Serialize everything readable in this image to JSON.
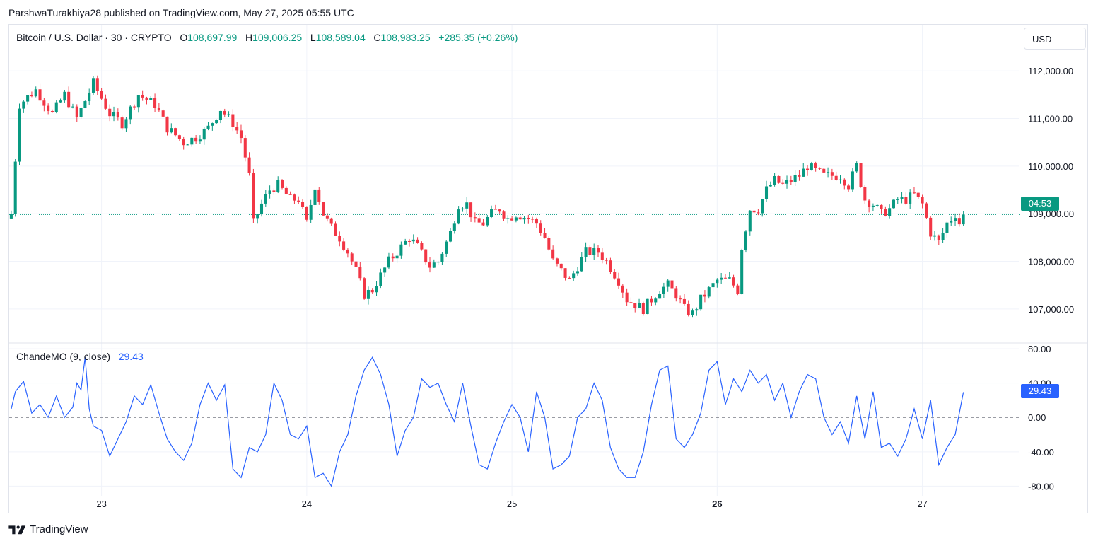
{
  "header": {
    "published_by": "ParshwaTurakhiya28 published on TradingView.com, May 27, 2025 05:55 UTC"
  },
  "legend": {
    "symbol": "Bitcoin / U.S. Dollar · 30 · CRYPTO",
    "o_label": "O",
    "o_value": "108,697.99",
    "h_label": "H",
    "h_value": "109,006.25",
    "l_label": "L",
    "l_value": "108,589.04",
    "c_label": "C",
    "c_value": "108,983.25",
    "change": "+285.35 (+0.26%)"
  },
  "toolbar": {
    "currency_label": "USD"
  },
  "price_scale": {
    "labels": [
      "112,000.00",
      "111,000.00",
      "110,000.00",
      "109,000.00",
      "108,000.00",
      "107,000.00"
    ],
    "countdown_label": "04:53"
  },
  "oscillator": {
    "name": "ChandeMO (9, close)",
    "value": "29.43",
    "scale_labels": [
      "80.00",
      "40.00",
      "0.00",
      "-40.00",
      "-80.00"
    ]
  },
  "time_axis": {
    "labels": [
      "23",
      "24",
      "25",
      "26",
      "27"
    ]
  },
  "brand": {
    "name": "TradingView"
  },
  "colors": {
    "up": "#089981",
    "down": "#f23645",
    "osc_line": "#2962ff",
    "grid": "#f0f3fa"
  },
  "chart_data": {
    "type": "candlestick",
    "interval": "30",
    "price_range": [
      106300,
      112300
    ],
    "oscillator_range": [
      -92,
      85
    ],
    "anchors": [
      [
        0,
        109000
      ],
      [
        2,
        111300
      ],
      [
        6,
        111600
      ],
      [
        10,
        111100
      ],
      [
        13,
        111500
      ],
      [
        16,
        111000
      ],
      [
        20,
        111750
      ],
      [
        24,
        111100
      ],
      [
        27,
        110900
      ],
      [
        31,
        111500
      ],
      [
        35,
        111300
      ],
      [
        38,
        110800
      ],
      [
        42,
        110500
      ],
      [
        45,
        110600
      ],
      [
        48,
        110800
      ],
      [
        51,
        111200
      ],
      [
        54,
        110900
      ],
      [
        56,
        110600
      ],
      [
        58,
        109800
      ],
      [
        59,
        108800
      ],
      [
        61,
        109200
      ],
      [
        63,
        109500
      ],
      [
        65,
        109600
      ],
      [
        68,
        109300
      ],
      [
        70,
        109300
      ],
      [
        72,
        108800
      ],
      [
        74,
        109600
      ],
      [
        76,
        109000
      ],
      [
        78,
        108700
      ],
      [
        80,
        108500
      ],
      [
        82,
        108200
      ],
      [
        84,
        107800
      ],
      [
        86,
        107300
      ],
      [
        88,
        107400
      ],
      [
        90,
        107700
      ],
      [
        92,
        108000
      ],
      [
        95,
        108300
      ],
      [
        97,
        108500
      ],
      [
        99,
        108300
      ],
      [
        102,
        107900
      ],
      [
        104,
        108000
      ],
      [
        106,
        108400
      ],
      [
        107,
        108600
      ],
      [
        109,
        109200
      ],
      [
        111,
        109200
      ],
      [
        113,
        108800
      ],
      [
        115,
        108800
      ],
      [
        117,
        109000
      ],
      [
        119,
        109100
      ],
      [
        121,
        108900
      ],
      [
        123,
        109000
      ],
      [
        126,
        108900
      ],
      [
        128,
        108800
      ],
      [
        130,
        108500
      ],
      [
        132,
        108000
      ],
      [
        134,
        107800
      ],
      [
        136,
        107600
      ],
      [
        138,
        107900
      ],
      [
        140,
        108200
      ],
      [
        143,
        108200
      ],
      [
        145,
        108000
      ],
      [
        148,
        107600
      ],
      [
        150,
        107200
      ],
      [
        152,
        107100
      ],
      [
        154,
        107000
      ],
      [
        156,
        107200
      ],
      [
        158,
        107400
      ],
      [
        160,
        107500
      ],
      [
        162,
        107300
      ],
      [
        164,
        107000
      ],
      [
        166,
        106900
      ],
      [
        168,
        107200
      ],
      [
        170,
        107400
      ],
      [
        172,
        107600
      ],
      [
        175,
        107600
      ],
      [
        177,
        107400
      ],
      [
        178,
        108300
      ],
      [
        180,
        109100
      ],
      [
        182,
        109100
      ],
      [
        184,
        109500
      ],
      [
        186,
        109700
      ],
      [
        188,
        109600
      ],
      [
        190,
        109700
      ],
      [
        192,
        109800
      ],
      [
        194,
        110000
      ],
      [
        196,
        109900
      ],
      [
        198,
        109800
      ],
      [
        200,
        109800
      ],
      [
        202,
        109800
      ],
      [
        204,
        109600
      ],
      [
        206,
        110000
      ],
      [
        208,
        109300
      ],
      [
        210,
        109200
      ],
      [
        212,
        109000
      ],
      [
        214,
        109100
      ],
      [
        216,
        109300
      ],
      [
        218,
        109300
      ],
      [
        220,
        109400
      ],
      [
        222,
        109200
      ],
      [
        224,
        108600
      ],
      [
        226,
        108400
      ],
      [
        228,
        108800
      ],
      [
        230,
        109000
      ],
      [
        231,
        108800
      ],
      [
        232,
        108983
      ]
    ],
    "last_close": 108983.25,
    "oscillator_points": [
      [
        0,
        10
      ],
      [
        1,
        30
      ],
      [
        3,
        42
      ],
      [
        5,
        5
      ],
      [
        7,
        15
      ],
      [
        9,
        0
      ],
      [
        11,
        25
      ],
      [
        13,
        0
      ],
      [
        15,
        12
      ],
      [
        16,
        40
      ],
      [
        17,
        32
      ],
      [
        18,
        70
      ],
      [
        19,
        10
      ],
      [
        20,
        -10
      ],
      [
        22,
        -15
      ],
      [
        24,
        -45
      ],
      [
        26,
        -25
      ],
      [
        28,
        -5
      ],
      [
        30,
        25
      ],
      [
        32,
        15
      ],
      [
        34,
        38
      ],
      [
        36,
        5
      ],
      [
        38,
        -25
      ],
      [
        40,
        -40
      ],
      [
        42,
        -50
      ],
      [
        44,
        -30
      ],
      [
        46,
        15
      ],
      [
        48,
        40
      ],
      [
        50,
        20
      ],
      [
        52,
        38
      ],
      [
        54,
        -60
      ],
      [
        56,
        -70
      ],
      [
        58,
        -35
      ],
      [
        60,
        -40
      ],
      [
        62,
        -20
      ],
      [
        64,
        40
      ],
      [
        66,
        20
      ],
      [
        68,
        -20
      ],
      [
        70,
        -25
      ],
      [
        72,
        -10
      ],
      [
        74,
        -70
      ],
      [
        76,
        -65
      ],
      [
        78,
        -80
      ],
      [
        80,
        -40
      ],
      [
        82,
        -20
      ],
      [
        84,
        25
      ],
      [
        86,
        55
      ],
      [
        88,
        70
      ],
      [
        90,
        50
      ],
      [
        92,
        15
      ],
      [
        94,
        -45
      ],
      [
        96,
        -15
      ],
      [
        98,
        0
      ],
      [
        100,
        45
      ],
      [
        102,
        35
      ],
      [
        104,
        40
      ],
      [
        106,
        15
      ],
      [
        108,
        -5
      ],
      [
        110,
        40
      ],
      [
        112,
        -10
      ],
      [
        114,
        -55
      ],
      [
        116,
        -60
      ],
      [
        118,
        -30
      ],
      [
        120,
        -5
      ],
      [
        122,
        15
      ],
      [
        124,
        0
      ],
      [
        126,
        -40
      ],
      [
        128,
        30
      ],
      [
        130,
        0
      ],
      [
        132,
        -60
      ],
      [
        134,
        -55
      ],
      [
        136,
        -45
      ],
      [
        138,
        0
      ],
      [
        140,
        10
      ],
      [
        142,
        40
      ],
      [
        144,
        20
      ],
      [
        146,
        -35
      ],
      [
        148,
        -60
      ],
      [
        150,
        -70
      ],
      [
        152,
        -70
      ],
      [
        154,
        -40
      ],
      [
        156,
        15
      ],
      [
        158,
        55
      ],
      [
        160,
        60
      ],
      [
        162,
        -25
      ],
      [
        164,
        -35
      ],
      [
        166,
        -20
      ],
      [
        168,
        5
      ],
      [
        170,
        55
      ],
      [
        172,
        65
      ],
      [
        174,
        15
      ],
      [
        176,
        45
      ],
      [
        178,
        30
      ],
      [
        180,
        55
      ],
      [
        182,
        40
      ],
      [
        184,
        50
      ],
      [
        186,
        20
      ],
      [
        188,
        40
      ],
      [
        190,
        0
      ],
      [
        192,
        30
      ],
      [
        194,
        50
      ],
      [
        196,
        45
      ],
      [
        198,
        0
      ],
      [
        200,
        -20
      ],
      [
        202,
        -5
      ],
      [
        204,
        -30
      ],
      [
        206,
        25
      ],
      [
        208,
        -25
      ],
      [
        210,
        30
      ],
      [
        212,
        -35
      ],
      [
        214,
        -30
      ],
      [
        216,
        -45
      ],
      [
        218,
        -25
      ],
      [
        220,
        10
      ],
      [
        222,
        -25
      ],
      [
        224,
        20
      ],
      [
        226,
        -55
      ],
      [
        228,
        -35
      ],
      [
        230,
        -20
      ],
      [
        232,
        29.43
      ]
    ],
    "time_label_bars": [
      22,
      72,
      122,
      172,
      222
    ],
    "price_ticks": [
      112000,
      111000,
      110000,
      109000,
      108000,
      107000
    ],
    "oscillator_ticks": [
      80,
      40,
      0,
      -40,
      -80
    ],
    "grid": true
  }
}
